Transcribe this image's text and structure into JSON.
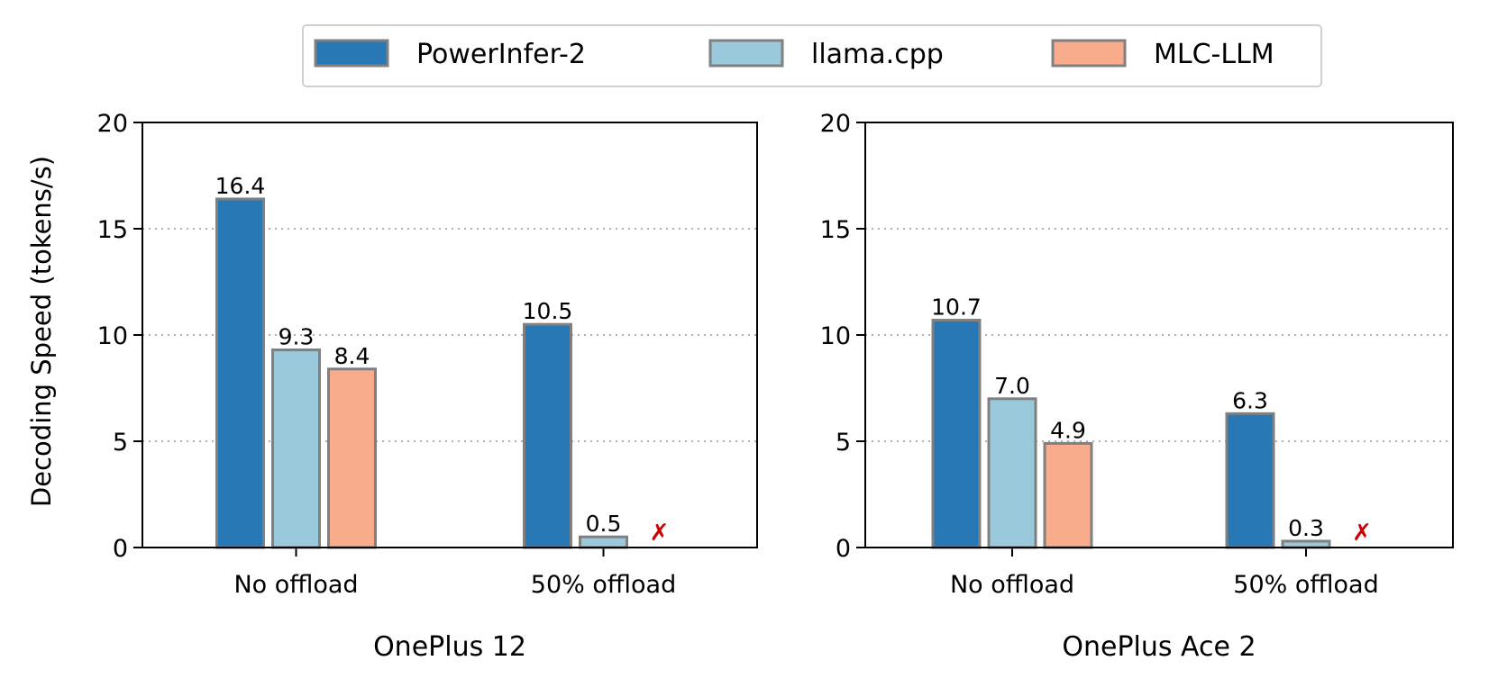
{
  "chart_data": {
    "type": "bar",
    "ylabel": "Decoding Speed (tokens/s)",
    "ylim": [
      0,
      20
    ],
    "yticks": [
      0,
      5,
      10,
      15,
      20
    ],
    "grid": "horizontal dotted",
    "legend_position": "top-center",
    "not_supported_marker": "✗",
    "not_supported_color": "#cc0000",
    "series": [
      {
        "name": "PowerInfer-2",
        "color": "#2878b5"
      },
      {
        "name": "llama.cpp",
        "color": "#9ac9db"
      },
      {
        "name": "MLC-LLM",
        "color": "#f8ac8c"
      }
    ],
    "panels": [
      {
        "title": "OnePlus 12",
        "categories": [
          "No offload",
          "50% offload"
        ],
        "values": [
          [
            16.4,
            9.3,
            8.4
          ],
          [
            10.5,
            0.5,
            null
          ]
        ],
        "labels": [
          [
            "16.4",
            "9.3",
            "8.4"
          ],
          [
            "10.5",
            "0.5",
            ""
          ]
        ]
      },
      {
        "title": "OnePlus Ace 2",
        "categories": [
          "No offload",
          "50% offload"
        ],
        "values": [
          [
            10.7,
            7.0,
            4.9
          ],
          [
            6.3,
            0.3,
            null
          ]
        ],
        "labels": [
          [
            "10.7",
            "7.0",
            "4.9"
          ],
          [
            "6.3",
            "0.3",
            ""
          ]
        ]
      }
    ]
  }
}
